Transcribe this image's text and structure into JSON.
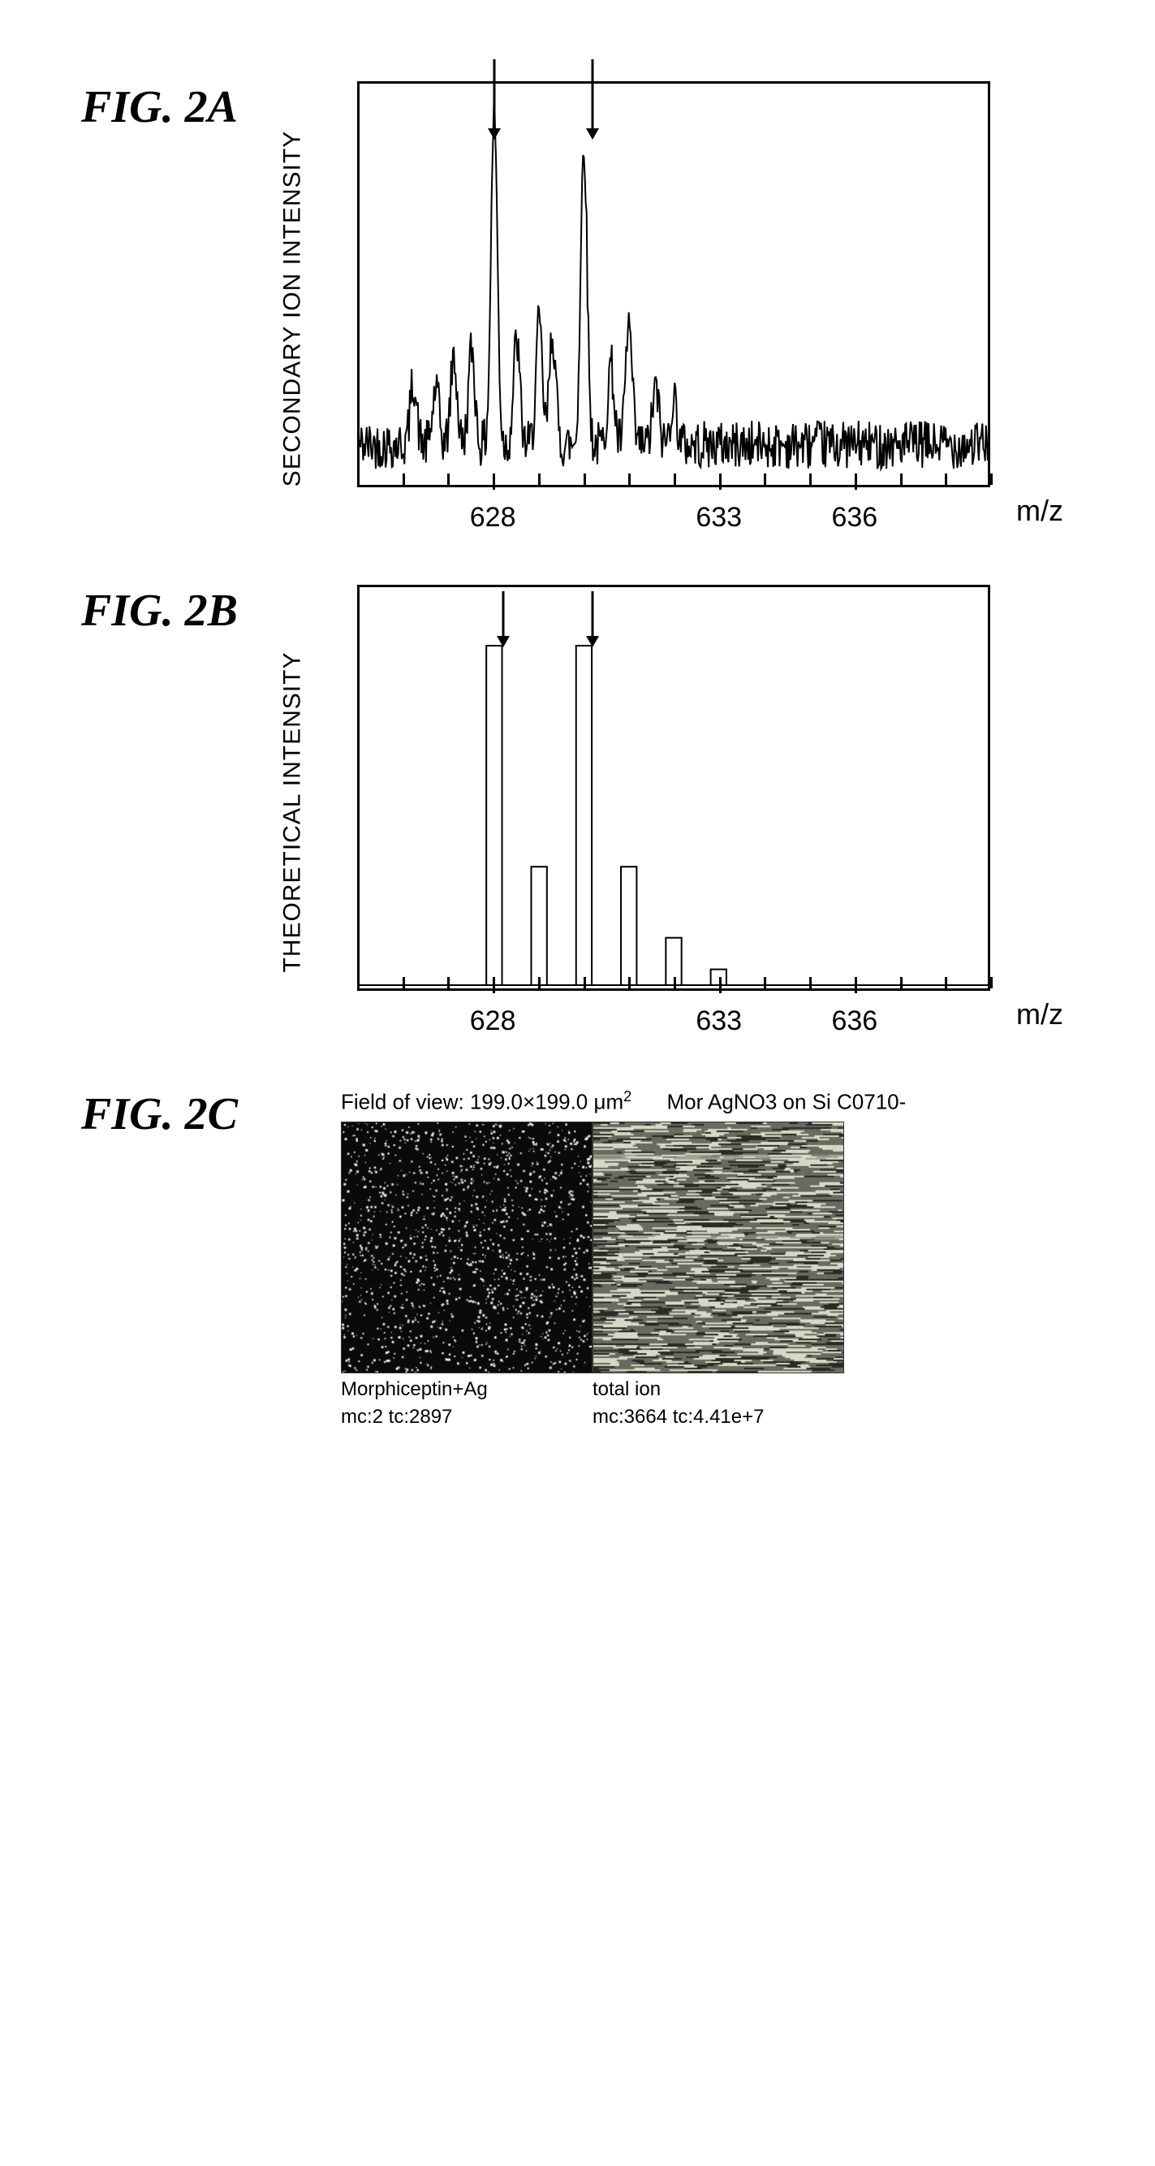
{
  "fig2a": {
    "label": "FIG.  2A",
    "chart": {
      "type": "mass-spectrum",
      "y_label": "SECONDARY ION\nINTENSITY",
      "x_label": "m/z",
      "xlim": [
        625,
        639
      ],
      "ylim": [
        0,
        100
      ],
      "xticks": [
        628,
        633,
        636
      ],
      "arrows_x": [
        628,
        630.2
      ],
      "border_color": "#000000",
      "background_color": "#ffffff",
      "border_width": 3,
      "tick_fontsize": 34,
      "label_fontsize": 30,
      "baseline": 10,
      "noise_amp": 6,
      "peaks": [
        {
          "x": 626.2,
          "h": 16
        },
        {
          "x": 626.7,
          "h": 14
        },
        {
          "x": 627.1,
          "h": 22
        },
        {
          "x": 627.5,
          "h": 24
        },
        {
          "x": 628.0,
          "h": 84
        },
        {
          "x": 628.5,
          "h": 26
        },
        {
          "x": 629.0,
          "h": 30
        },
        {
          "x": 629.3,
          "h": 28
        },
        {
          "x": 630.0,
          "h": 76
        },
        {
          "x": 630.6,
          "h": 20
        },
        {
          "x": 631.0,
          "h": 30
        },
        {
          "x": 631.6,
          "h": 14
        },
        {
          "x": 632.0,
          "h": 12
        }
      ]
    }
  },
  "fig2b": {
    "label": "FIG.  2B",
    "chart": {
      "type": "theoretical-spectrum",
      "y_label": "THEORETICAL\nINTENSITY",
      "x_label": "m/z",
      "xlim": [
        625,
        639
      ],
      "ylim": [
        0,
        100
      ],
      "xticks": [
        628,
        633,
        636
      ],
      "arrows_x": [
        628.2,
        630.2
      ],
      "border_color": "#000000",
      "background_color": "#ffffff",
      "border_width": 3,
      "tick_fontsize": 34,
      "label_fontsize": 30,
      "bar_width_mz": 0.35,
      "outline_color": "#000000",
      "outline_width": 2,
      "fill_color": "#ffffff",
      "bars": [
        {
          "x": 628.0,
          "h": 86
        },
        {
          "x": 629.0,
          "h": 30
        },
        {
          "x": 630.0,
          "h": 86
        },
        {
          "x": 631.0,
          "h": 30
        },
        {
          "x": 632.0,
          "h": 12
        },
        {
          "x": 633.0,
          "h": 4
        }
      ]
    }
  },
  "fig2c": {
    "label": "FIG.  2C",
    "header_left": "Field of view: 199.0×199.0 ",
    "header_unit": "μm",
    "header_sup": "2",
    "header_right": "Mor AgNO3 on Si  C0710-",
    "panels": [
      {
        "title": "Morphiceptin+Ag",
        "sub": "mc:2 tc:2897",
        "bg": "#0a0a0a",
        "speckle_color": "#f2f2e6",
        "speckle_density": 0.015,
        "noise_type": "sparse-speckle"
      },
      {
        "title": "total ion",
        "sub": "mc:3664 tc:4.41e+7",
        "bg": "#6a6a60",
        "streak_color_light": "#d8d8c8",
        "streak_color_dark": "#2a2a24",
        "noise_type": "horizontal-streaks"
      }
    ]
  }
}
